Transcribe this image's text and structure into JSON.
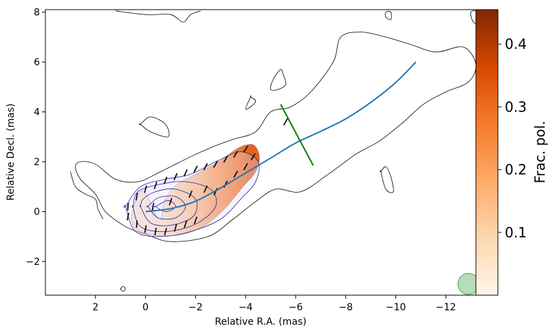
{
  "chart_data": {
    "type": "scatter",
    "xlabel": "Relative R.A. (mas)",
    "ylabel": "Relative Decl. (mas)",
    "xlim": [
      4.0,
      -13.2
    ],
    "ylim": [
      -3.35,
      8.1
    ],
    "x_axis_inverted": true,
    "x_ticks": [
      2,
      0,
      -2,
      -4,
      -6,
      -8,
      -10,
      -12
    ],
    "x_tick_labels": [
      "2",
      "0",
      "−2",
      "−4",
      "−6",
      "−8",
      "−10",
      "−12"
    ],
    "y_ticks": [
      -2,
      0,
      2,
      4,
      6,
      8
    ],
    "y_tick_labels": [
      "−2",
      "0",
      "2",
      "4",
      "6",
      "8"
    ],
    "grid": false,
    "colorbar": {
      "label": "Frac. pol.",
      "range": [
        0.0,
        0.455
      ],
      "ticks": [
        0.1,
        0.2,
        0.3,
        0.4
      ],
      "tick_labels": [
        "0.1",
        "0.2",
        "0.3",
        "0.4"
      ],
      "cmap": "Oranges",
      "color_low": "#fff5eb",
      "color_high": "#7f2704"
    },
    "ridge_line": {
      "color": "#1f77b4",
      "points": [
        [
          0,
          0
        ],
        [
          -1,
          0.12
        ],
        [
          -2,
          0.42
        ],
        [
          -3,
          0.95
        ],
        [
          -4,
          1.55
        ],
        [
          -5,
          2.15
        ],
        [
          -6,
          2.75
        ],
        [
          -7,
          3.22
        ],
        [
          -8,
          3.72
        ],
        [
          -9,
          4.38
        ],
        [
          -10,
          5.18
        ],
        [
          -10.8,
          6.0
        ]
      ]
    },
    "cut_line": {
      "color": "#008000",
      "points": [
        [
          -5.4,
          4.3
        ],
        [
          -6.7,
          1.85
        ]
      ]
    },
    "beam": {
      "center": [
        -12.9,
        -2.9
      ],
      "radius_mas": 0.42,
      "color": "#90c990"
    },
    "polarization_region": [
      [
        -0.55,
        -0.35
      ],
      [
        -0.7,
        0.2
      ],
      [
        -0.85,
        0.6
      ],
      [
        -1.2,
        1.05
      ],
      [
        -2,
        1.5
      ],
      [
        -3,
        2.05
      ],
      [
        -3.7,
        2.55
      ],
      [
        -4.3,
        2.68
      ],
      [
        -4.55,
        2.2
      ],
      [
        -4.4,
        1.6
      ],
      [
        -3.9,
        1.0
      ],
      [
        -3.1,
        0.05
      ],
      [
        -2.3,
        -0.6
      ],
      [
        -1.4,
        -0.92
      ],
      [
        -0.5,
        -0.95
      ],
      [
        0.3,
        -0.75
      ],
      [
        0.55,
        -0.3
      ],
      [
        0.4,
        0.4
      ],
      [
        0.05,
        0.8
      ]
    ],
    "frac_pol_samples": [
      {
        "x": -0.5,
        "y": 0.2,
        "v": 0.05
      },
      {
        "x": -1.6,
        "y": 0.6,
        "v": 0.12
      },
      {
        "x": -2.6,
        "y": 1.0,
        "v": 0.2
      },
      {
        "x": -3.5,
        "y": 1.7,
        "v": 0.27
      },
      {
        "x": -4.2,
        "y": 2.3,
        "v": 0.33
      },
      {
        "x": -2.4,
        "y": -0.2,
        "v": 0.18
      }
    ],
    "evpa_vectors": [
      {
        "x": 0.7,
        "y": 0.2,
        "angle_deg": 95
      },
      {
        "x": 0.7,
        "y": -0.2,
        "angle_deg": 100
      },
      {
        "x": 0.35,
        "y": 0.6,
        "angle_deg": 100
      },
      {
        "x": 0.35,
        "y": -0.5,
        "angle_deg": 95
      },
      {
        "x": 0.0,
        "y": 0.9,
        "angle_deg": 105
      },
      {
        "x": 0.0,
        "y": -0.7,
        "angle_deg": 100
      },
      {
        "x": -0.4,
        "y": 1.05,
        "angle_deg": 110
      },
      {
        "x": -0.4,
        "y": -0.8,
        "angle_deg": 100
      },
      {
        "x": -0.8,
        "y": 1.25,
        "angle_deg": 110
      },
      {
        "x": -0.8,
        "y": -0.8,
        "angle_deg": 105
      },
      {
        "x": -1.2,
        "y": 1.4,
        "angle_deg": 115
      },
      {
        "x": -1.2,
        "y": -0.65,
        "angle_deg": 105
      },
      {
        "x": -1.6,
        "y": 1.55,
        "angle_deg": 115
      },
      {
        "x": -1.6,
        "y": -0.5,
        "angle_deg": 110
      },
      {
        "x": -2.0,
        "y": 1.7,
        "angle_deg": 118
      },
      {
        "x": -2.0,
        "y": -0.35,
        "angle_deg": 110
      },
      {
        "x": -2.4,
        "y": 1.8,
        "angle_deg": 118
      },
      {
        "x": -2.4,
        "y": 0.9,
        "angle_deg": 115
      },
      {
        "x": -2.8,
        "y": 1.9,
        "angle_deg": 120
      },
      {
        "x": -2.8,
        "y": 0.8,
        "angle_deg": 115
      },
      {
        "x": -3.2,
        "y": 2.1,
        "angle_deg": 120
      },
      {
        "x": -3.2,
        "y": 1.1,
        "angle_deg": 118
      },
      {
        "x": -3.6,
        "y": 2.3,
        "angle_deg": 122
      },
      {
        "x": -3.6,
        "y": 1.5,
        "angle_deg": 120
      },
      {
        "x": -4.0,
        "y": 2.5,
        "angle_deg": 122
      },
      {
        "x": -4.0,
        "y": 1.8,
        "angle_deg": 120
      },
      {
        "x": -4.3,
        "y": 2.2,
        "angle_deg": 122
      },
      {
        "x": -1.0,
        "y": 0.4,
        "angle_deg": 108
      },
      {
        "x": -1.8,
        "y": 0.7,
        "angle_deg": 112
      },
      {
        "x": -0.3,
        "y": 0.2,
        "angle_deg": 100
      },
      {
        "x": -5.6,
        "y": 3.6,
        "angle_deg": 120
      }
    ],
    "contours": {
      "outer": [
        [
          [
            2.8,
            1.8
          ],
          [
            2.6,
            1.3
          ],
          [
            2.0,
            0.7
          ],
          [
            1.6,
            0.0
          ],
          [
            0.8,
            -0.6
          ],
          [
            0.0,
            -0.9
          ],
          [
            -1.0,
            -1.2
          ],
          [
            -2.5,
            -1.0
          ],
          [
            -3.5,
            -0.3
          ],
          [
            -4.4,
            0.4
          ],
          [
            -5.2,
            0.9
          ],
          [
            -6.2,
            0.8
          ],
          [
            -7.3,
            1.5
          ],
          [
            -8.4,
            2.3
          ],
          [
            -9.3,
            2.8
          ],
          [
            -10.2,
            3.5
          ],
          [
            -11.1,
            4.3
          ],
          [
            -12.0,
            4.8
          ],
          [
            -12.9,
            5.2
          ],
          [
            -13.2,
            5.9
          ],
          [
            -12.7,
            6.6
          ],
          [
            -11.6,
            6.4
          ],
          [
            -10.6,
            6.7
          ],
          [
            -9.6,
            7.0
          ],
          [
            -8.6,
            7.2
          ],
          [
            -7.8,
            7.0
          ],
          [
            -7.5,
            6.0
          ],
          [
            -6.6,
            4.8
          ],
          [
            -5.8,
            4.2
          ],
          [
            -5.0,
            4.0
          ],
          [
            -4.4,
            3.2
          ],
          [
            -3.5,
            2.9
          ],
          [
            -2.7,
            2.6
          ],
          [
            -1.8,
            2.2
          ],
          [
            -0.6,
            1.6
          ],
          [
            0.3,
            1.2
          ],
          [
            1.2,
            1.3
          ],
          [
            2.0,
            1.9
          ],
          [
            2.6,
            2.0
          ]
        ],
        [
          [
            3.0,
            1.6
          ],
          [
            2.8,
            1.0
          ],
          [
            2.4,
            0.7
          ],
          [
            2.0,
            0.5
          ],
          [
            1.9,
            0.1
          ],
          [
            1.7,
            -0.3
          ]
        ],
        [
          [
            0.2,
            3.5
          ],
          [
            -0.2,
            3.2
          ],
          [
            -0.9,
            3.0
          ],
          [
            -0.8,
            3.5
          ],
          [
            -0.2,
            3.8
          ],
          [
            0.2,
            3.5
          ]
        ],
        [
          [
            -5.4,
            5.7
          ],
          [
            -5.1,
            5.3
          ],
          [
            -5.0,
            4.9
          ],
          [
            -5.3,
            4.9
          ],
          [
            -5.6,
            5.1
          ],
          [
            -5.5,
            5.5
          ]
        ],
        [
          [
            -4.2,
            4.6
          ],
          [
            -4.0,
            4.1
          ],
          [
            -4.4,
            4.4
          ],
          [
            -4.2,
            4.6
          ]
        ],
        [
          [
            -9.4,
            1.6
          ],
          [
            -9.6,
            0.9
          ],
          [
            -9.9,
            0.8
          ],
          [
            -9.8,
            1.4
          ],
          [
            -9.6,
            1.8
          ],
          [
            -9.4,
            1.6
          ]
        ],
        [
          [
            -13.0,
            8.0
          ],
          [
            -13.1,
            7.6
          ],
          [
            -13.4,
            7.5
          ],
          [
            -13.3,
            8.0
          ]
        ],
        [
          [
            -9.6,
            8.0
          ],
          [
            -9.6,
            7.8
          ],
          [
            -9.8,
            7.7
          ],
          [
            -9.8,
            8.0
          ]
        ],
        [
          [
            1.2,
            8.05
          ],
          [
            0.0,
            7.9
          ],
          [
            -1.0,
            7.9
          ],
          [
            -1.5,
            7.6
          ],
          [
            -1.8,
            7.9
          ],
          [
            -2.2,
            8.05
          ]
        ],
        [
          [
            1.0,
            -3.1
          ],
          [
            0.9,
            -3.0
          ],
          [
            0.8,
            -3.1
          ],
          [
            0.9,
            -3.2
          ],
          [
            1.0,
            -3.1
          ]
        ]
      ],
      "inner": [
        [
          [
            0.8,
            0.2
          ],
          [
            0.4,
            -0.8
          ],
          [
            -0.6,
            -1.0
          ],
          [
            -1.8,
            -0.8
          ],
          [
            -3.0,
            -0.3
          ],
          [
            -3.8,
            0.5
          ],
          [
            -4.4,
            1.2
          ],
          [
            -4.5,
            2.0
          ],
          [
            -3.8,
            2.4
          ],
          [
            -2.8,
            2.0
          ],
          [
            -1.8,
            1.5
          ],
          [
            -0.8,
            1.3
          ],
          [
            0.2,
            1.0
          ],
          [
            0.8,
            0.2
          ]
        ],
        [
          [
            0.5,
            0.2
          ],
          [
            0.2,
            -0.6
          ],
          [
            -0.8,
            -0.8
          ],
          [
            -2.0,
            -0.5
          ],
          [
            -2.8,
            0.2
          ],
          [
            -2.6,
            0.9
          ],
          [
            -1.6,
            1.2
          ],
          [
            -0.6,
            1.1
          ],
          [
            0.3,
            0.8
          ],
          [
            0.5,
            0.2
          ]
        ],
        [
          [
            0.2,
            0.2
          ],
          [
            -0.2,
            -0.45
          ],
          [
            -1.0,
            -0.55
          ],
          [
            -1.9,
            -0.2
          ],
          [
            -2.0,
            0.5
          ],
          [
            -1.2,
            0.9
          ],
          [
            -0.4,
            0.8
          ],
          [
            0.1,
            0.5
          ],
          [
            0.2,
            0.2
          ]
        ],
        [
          [
            -0.1,
            0.2
          ],
          [
            -0.5,
            -0.25
          ],
          [
            -1.2,
            -0.25
          ],
          [
            -1.6,
            0.2
          ],
          [
            -1.2,
            0.6
          ],
          [
            -0.5,
            0.55
          ],
          [
            -0.1,
            0.2
          ]
        ],
        [
          [
            -0.4,
            0.2
          ],
          [
            -0.8,
            0.0
          ],
          [
            -1.2,
            0.2
          ],
          [
            -0.9,
            0.45
          ],
          [
            -0.4,
            0.2
          ]
        ]
      ],
      "outer_color": "#000000",
      "inner_color": "#1e1e9e"
    }
  }
}
